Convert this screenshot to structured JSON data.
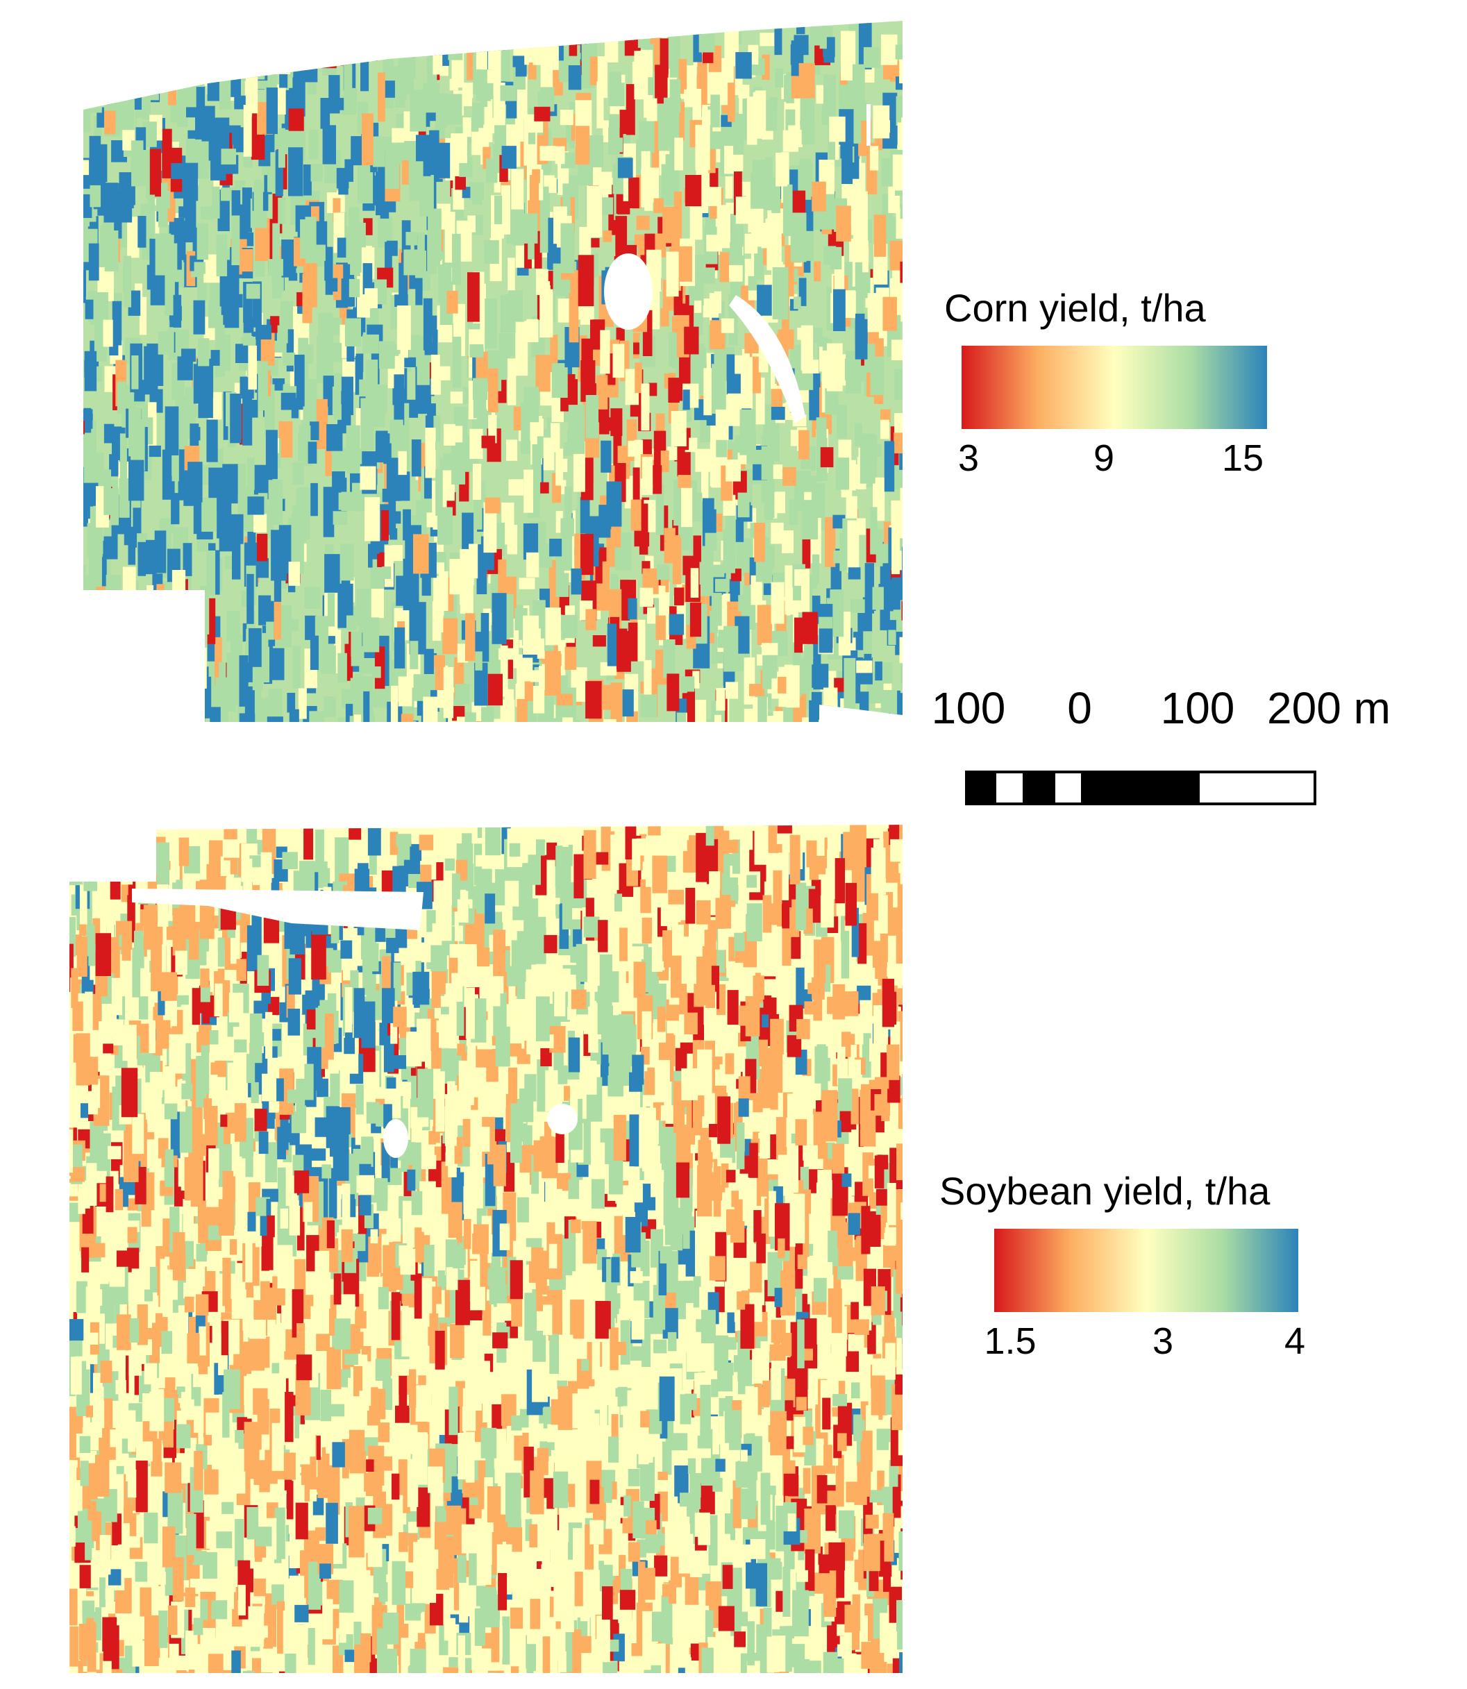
{
  "figure": {
    "maps": [
      {
        "name": "corn-yield-map",
        "legend": {
          "title": "Corn yield, t/ha",
          "ticks": [
            "3",
            "9",
            "15"
          ],
          "range": [
            3,
            15
          ],
          "colors": [
            "#d7191c",
            "#fdae61",
            "#ffffbf",
            "#abdda4",
            "#2b83ba"
          ]
        }
      },
      {
        "name": "soybean-yield-map",
        "legend": {
          "title": "Soybean yield, t/ha",
          "ticks": [
            "1.5",
            "3",
            "4"
          ],
          "range": [
            1.5,
            4
          ],
          "colors": [
            "#d7191c",
            "#fdae61",
            "#ffffbf",
            "#abdda4",
            "#2b83ba"
          ]
        }
      }
    ],
    "scale_bar": {
      "labels": [
        "100",
        "0",
        "100",
        "200 m"
      ],
      "unit": "m"
    }
  }
}
